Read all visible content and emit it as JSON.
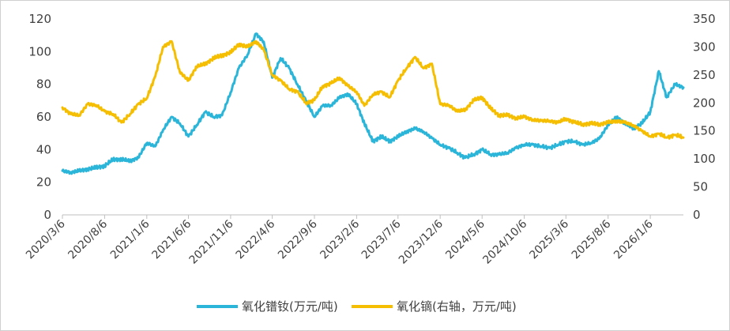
{
  "chart_data": {
    "type": "line",
    "title": "",
    "xlabel": "",
    "ylabel": "",
    "y_left": {
      "ticks": [
        0,
        20,
        40,
        60,
        80,
        100,
        120
      ],
      "range": [
        0,
        120
      ]
    },
    "y_right": {
      "ticks": [
        0,
        50,
        100,
        150,
        200,
        250,
        300,
        350
      ],
      "range": [
        0,
        350
      ]
    },
    "x_ticks": [
      "2020/3/6",
      "2020/8/6",
      "2021/1/6",
      "2021/6/6",
      "2021/11/6",
      "2022/4/6",
      "2022/9/6",
      "2023/2/6",
      "2023/7/6",
      "2023/12/6",
      "2024/5/6",
      "2024/10/6",
      "2025/3/6",
      "2025/8/6",
      "2026/1/6"
    ],
    "x_range": [
      "2020/3/6",
      "2026/5/6"
    ],
    "legend_position": "bottom",
    "grid": false,
    "series": [
      {
        "name": "氧化镨钕(万元/吨)",
        "axis": "left",
        "color": "#2bb5d8",
        "points": [
          [
            "2020/3/6",
            27
          ],
          [
            "2020/4/6",
            26
          ],
          [
            "2020/5/6",
            27
          ],
          [
            "2020/6/6",
            28
          ],
          [
            "2020/7/6",
            29
          ],
          [
            "2020/8/6",
            30
          ],
          [
            "2020/9/6",
            34
          ],
          [
            "2020/10/6",
            34
          ],
          [
            "2020/11/6",
            33
          ],
          [
            "2020/12/6",
            35
          ],
          [
            "2021/1/6",
            44
          ],
          [
            "2021/2/6",
            42
          ],
          [
            "2021/3/6",
            52
          ],
          [
            "2021/4/6",
            60
          ],
          [
            "2021/5/6",
            56
          ],
          [
            "2021/6/6",
            48
          ],
          [
            "2021/7/6",
            55
          ],
          [
            "2021/8/6",
            63
          ],
          [
            "2021/9/6",
            60
          ],
          [
            "2021/10/6",
            61
          ],
          [
            "2021/11/6",
            75
          ],
          [
            "2021/12/6",
            90
          ],
          [
            "2022/1/6",
            98
          ],
          [
            "2022/2/6",
            111
          ],
          [
            "2022/3/6",
            106
          ],
          [
            "2022/4/6",
            84
          ],
          [
            "2022/5/6",
            96
          ],
          [
            "2022/6/6",
            90
          ],
          [
            "2022/7/6",
            80
          ],
          [
            "2022/8/6",
            70
          ],
          [
            "2022/9/6",
            60
          ],
          [
            "2022/10/6",
            67
          ],
          [
            "2022/11/6",
            67
          ],
          [
            "2022/12/6",
            72
          ],
          [
            "2023/1/6",
            74
          ],
          [
            "2023/2/6",
            68
          ],
          [
            "2023/3/6",
            56
          ],
          [
            "2023/4/6",
            45
          ],
          [
            "2023/5/6",
            48
          ],
          [
            "2023/6/6",
            45
          ],
          [
            "2023/7/6",
            48
          ],
          [
            "2023/8/6",
            51
          ],
          [
            "2023/9/6",
            53
          ],
          [
            "2023/10/6",
            51
          ],
          [
            "2023/11/6",
            47
          ],
          [
            "2023/12/6",
            43
          ],
          [
            "2024/1/6",
            41
          ],
          [
            "2024/2/6",
            38
          ],
          [
            "2024/3/6",
            35
          ],
          [
            "2024/4/6",
            37
          ],
          [
            "2024/5/6",
            40
          ],
          [
            "2024/6/6",
            37
          ],
          [
            "2024/7/6",
            37
          ],
          [
            "2024/8/6",
            38
          ],
          [
            "2024/9/6",
            41
          ],
          [
            "2024/10/6",
            43
          ],
          [
            "2024/11/6",
            43
          ],
          [
            "2024/12/6",
            42
          ],
          [
            "2025/1/6",
            41
          ],
          [
            "2025/2/6",
            43
          ],
          [
            "2025/3/6",
            45
          ],
          [
            "2025/4/6",
            45
          ],
          [
            "2025/5/6",
            43
          ],
          [
            "2025/6/6",
            44
          ],
          [
            "2025/7/6",
            47
          ],
          [
            "2025/8/6",
            55
          ],
          [
            "2025/9/6",
            60
          ],
          [
            "2025/10/6",
            56
          ],
          [
            "2025/11/6",
            53
          ],
          [
            "2025/12/6",
            56
          ],
          [
            "2026/1/6",
            63
          ],
          [
            "2026/2/6",
            88
          ],
          [
            "2026/3/6",
            72
          ],
          [
            "2026/4/6",
            80
          ],
          [
            "2026/5/6",
            78
          ]
        ]
      },
      {
        "name": "氧化镝(右轴，万元/吨)",
        "axis": "right",
        "color": "#f5be00",
        "points": [
          [
            "2020/3/6",
            192
          ],
          [
            "2020/4/6",
            180
          ],
          [
            "2020/5/6",
            178
          ],
          [
            "2020/6/6",
            198
          ],
          [
            "2020/7/6",
            196
          ],
          [
            "2020/8/6",
            185
          ],
          [
            "2020/9/6",
            180
          ],
          [
            "2020/10/6",
            165
          ],
          [
            "2020/11/6",
            180
          ],
          [
            "2020/12/6",
            198
          ],
          [
            "2021/1/6",
            208
          ],
          [
            "2021/2/6",
            248
          ],
          [
            "2021/3/6",
            300
          ],
          [
            "2021/4/6",
            310
          ],
          [
            "2021/5/6",
            255
          ],
          [
            "2021/6/6",
            240
          ],
          [
            "2021/7/6",
            265
          ],
          [
            "2021/8/6",
            270
          ],
          [
            "2021/9/6",
            280
          ],
          [
            "2021/10/6",
            285
          ],
          [
            "2021/11/6",
            290
          ],
          [
            "2021/12/6",
            305
          ],
          [
            "2022/1/6",
            300
          ],
          [
            "2022/2/6",
            310
          ],
          [
            "2022/3/6",
            295
          ],
          [
            "2022/4/6",
            250
          ],
          [
            "2022/5/6",
            240
          ],
          [
            "2022/6/6",
            225
          ],
          [
            "2022/7/6",
            220
          ],
          [
            "2022/8/6",
            200
          ],
          [
            "2022/9/6",
            205
          ],
          [
            "2022/10/6",
            230
          ],
          [
            "2022/11/6",
            235
          ],
          [
            "2022/12/6",
            245
          ],
          [
            "2023/1/6",
            230
          ],
          [
            "2023/2/6",
            220
          ],
          [
            "2023/3/6",
            195
          ],
          [
            "2023/4/6",
            215
          ],
          [
            "2023/5/6",
            220
          ],
          [
            "2023/6/6",
            210
          ],
          [
            "2023/7/6",
            240
          ],
          [
            "2023/8/6",
            262
          ],
          [
            "2023/9/6",
            282
          ],
          [
            "2023/10/6",
            262
          ],
          [
            "2023/11/6",
            270
          ],
          [
            "2023/12/6",
            198
          ],
          [
            "2024/1/6",
            196
          ],
          [
            "2024/2/6",
            185
          ],
          [
            "2024/3/6",
            188
          ],
          [
            "2024/4/6",
            205
          ],
          [
            "2024/5/6",
            210
          ],
          [
            "2024/6/6",
            190
          ],
          [
            "2024/7/6",
            178
          ],
          [
            "2024/8/6",
            178
          ],
          [
            "2024/9/6",
            173
          ],
          [
            "2024/10/6",
            175
          ],
          [
            "2024/11/6",
            170
          ],
          [
            "2024/12/6",
            168
          ],
          [
            "2025/1/6",
            168
          ],
          [
            "2025/2/6",
            165
          ],
          [
            "2025/3/6",
            172
          ],
          [
            "2025/4/6",
            165
          ],
          [
            "2025/5/6",
            162
          ],
          [
            "2025/6/6",
            163
          ],
          [
            "2025/7/6",
            162
          ],
          [
            "2025/8/6",
            165
          ],
          [
            "2025/9/6",
            168
          ],
          [
            "2025/10/6",
            165
          ],
          [
            "2025/11/6",
            160
          ],
          [
            "2025/12/6",
            150
          ],
          [
            "2026/1/6",
            140
          ],
          [
            "2026/2/6",
            145
          ],
          [
            "2026/3/6",
            138
          ],
          [
            "2026/4/6",
            143
          ],
          [
            "2026/5/6",
            138
          ]
        ]
      }
    ]
  }
}
